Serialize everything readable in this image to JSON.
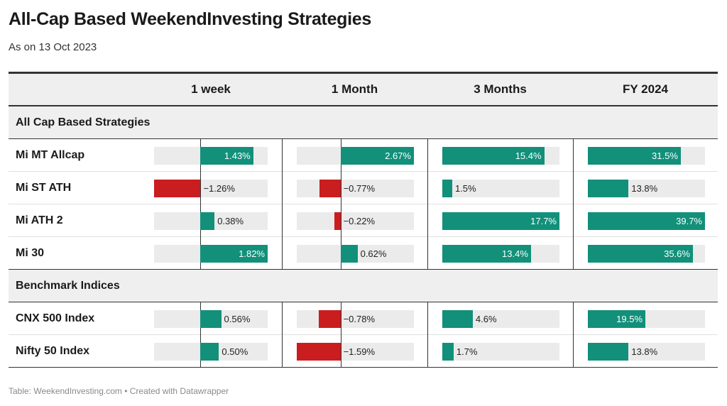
{
  "title": "All-Cap Based WeekendInvesting Strategies",
  "subtitle": "As on 13 Oct 2023",
  "footer": "Table: WeekendInvesting.com • Created with Datawrapper",
  "colors": {
    "positive": "#12907a",
    "negative": "#c91d1f",
    "track": "#ebebeb",
    "header_bg": "#efefef"
  },
  "columns": [
    "1 week",
    "1 Month",
    "3 Months",
    "FY 2024"
  ],
  "groups": [
    {
      "label": "All Cap Based Strategies",
      "rows": [
        {
          "label": "Mi MT Allcap",
          "display": [
            "1.43%",
            "2.67%",
            "15.4%",
            "31.5%"
          ]
        },
        {
          "label": "Mi ST ATH",
          "display": [
            "−1.26%",
            "−0.77%",
            "1.5%",
            "13.8%"
          ]
        },
        {
          "label": "Mi ATH 2",
          "display": [
            "0.38%",
            "−0.22%",
            "17.7%",
            "39.7%"
          ]
        },
        {
          "label": "Mi 30",
          "display": [
            "1.82%",
            "0.62%",
            "13.4%",
            "35.6%"
          ]
        }
      ]
    },
    {
      "label": "Benchmark Indices",
      "rows": [
        {
          "label": "CNX 500 Index",
          "display": [
            "0.56%",
            "−0.78%",
            "4.6%",
            "19.5%"
          ]
        },
        {
          "label": "Nifty 50 Index",
          "display": [
            "0.50%",
            "−1.59%",
            "1.7%",
            "13.8%"
          ]
        }
      ]
    }
  ],
  "chart_data": {
    "type": "table",
    "title": "All-Cap Based WeekendInvesting Strategies",
    "subtitle": "As on 13 Oct 2023",
    "unit": "%",
    "columns": [
      "1 week",
      "1 Month",
      "3 Months",
      "FY 2024"
    ],
    "column_ranges": [
      [
        -1.26,
        1.82
      ],
      [
        -1.59,
        2.67
      ],
      [
        0,
        17.7
      ],
      [
        0,
        39.7
      ]
    ],
    "rows": [
      {
        "group": "All Cap Based Strategies",
        "label": "Mi MT Allcap",
        "values": [
          1.43,
          2.67,
          15.4,
          31.5
        ]
      },
      {
        "group": "All Cap Based Strategies",
        "label": "Mi ST ATH",
        "values": [
          -1.26,
          -0.77,
          1.5,
          13.8
        ]
      },
      {
        "group": "All Cap Based Strategies",
        "label": "Mi ATH 2",
        "values": [
          0.38,
          -0.22,
          17.7,
          39.7
        ]
      },
      {
        "group": "All Cap Based Strategies",
        "label": "Mi 30",
        "values": [
          1.82,
          0.62,
          13.4,
          35.6
        ]
      },
      {
        "group": "Benchmark Indices",
        "label": "CNX 500 Index",
        "values": [
          0.56,
          -0.78,
          4.6,
          19.5
        ]
      },
      {
        "group": "Benchmark Indices",
        "label": "Nifty 50 Index",
        "values": [
          0.5,
          -1.59,
          1.7,
          13.8
        ]
      }
    ]
  }
}
